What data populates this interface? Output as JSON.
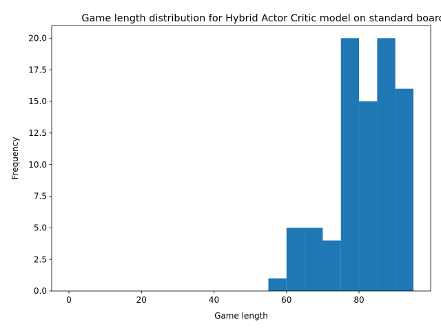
{
  "chart_data": {
    "type": "bar",
    "title": "Game length distribution for Hybrid Actor Critic model on standard board",
    "xlabel": "Game length",
    "ylabel": "Frequency",
    "xlim": [
      -4.75,
      99.75
    ],
    "ylim": [
      0,
      21
    ],
    "xticks": [
      0,
      20,
      40,
      60,
      80
    ],
    "xtick_labels": [
      "0",
      "20",
      "40",
      "60",
      "80"
    ],
    "yticks": [
      0,
      2.5,
      5,
      7.5,
      10,
      12.5,
      15,
      17.5,
      20
    ],
    "ytick_labels": [
      "0.0",
      "2.5",
      "5.0",
      "7.5",
      "10.0",
      "12.5",
      "15.0",
      "17.5",
      "20.0"
    ],
    "bin_edges": [
      0,
      5,
      10,
      15,
      20,
      25,
      30,
      35,
      40,
      45,
      50,
      55,
      60,
      65,
      70,
      75,
      80,
      85,
      90,
      95
    ],
    "values": [
      0,
      0,
      0,
      0,
      0,
      0,
      0,
      0,
      0,
      0,
      0,
      1,
      5,
      5,
      4,
      20,
      15,
      20,
      16
    ],
    "bar_color": "#1f77b4",
    "grid": false
  }
}
